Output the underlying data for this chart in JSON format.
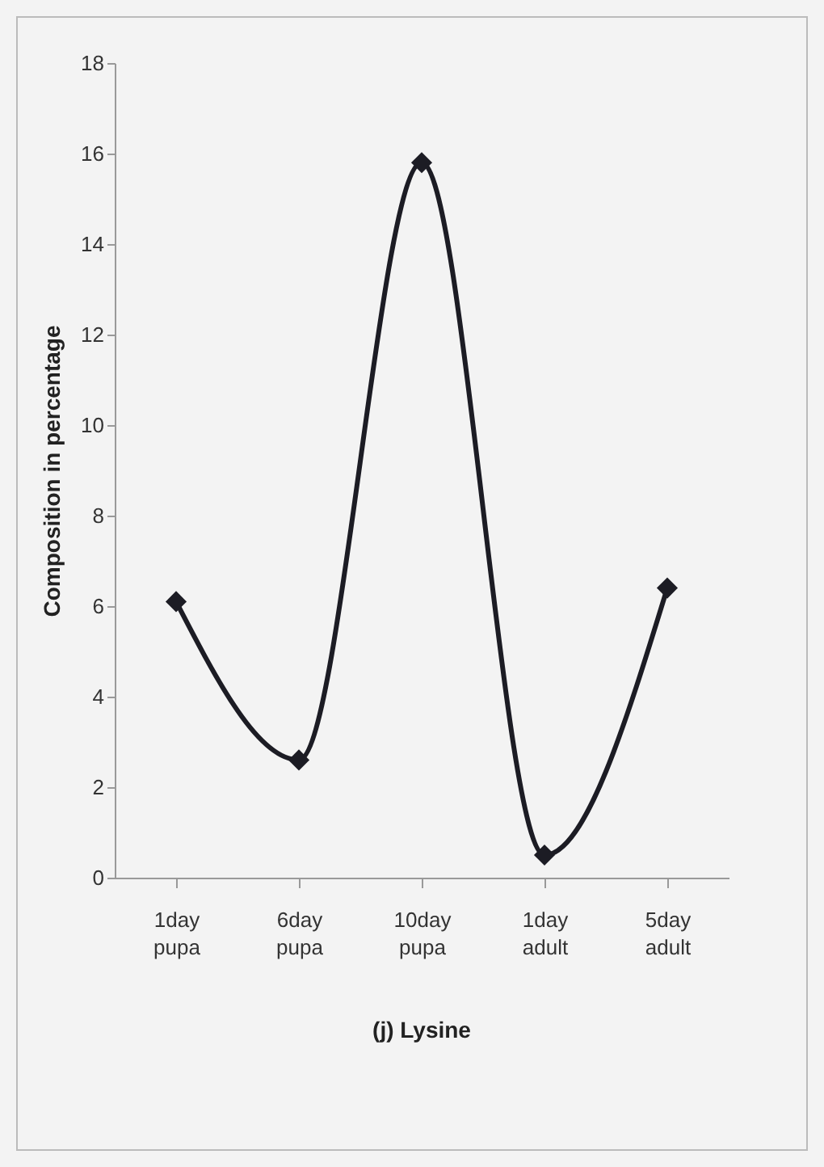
{
  "chart_data": {
    "type": "line",
    "title": "(j) Lysine",
    "ylabel": "Composition in percentage",
    "categories": [
      "1day pupa",
      "6day pupa",
      "10day pupa",
      "1day adult",
      "5day adult"
    ],
    "series": [
      {
        "color": "#1c1c24",
        "values": [
          6.1,
          2.6,
          15.8,
          0.5,
          6.4
        ]
      }
    ],
    "ylim": [
      0,
      18
    ],
    "yticks": [
      0,
      2,
      4,
      6,
      8,
      10,
      12,
      14,
      16,
      18
    ],
    "grid": false,
    "legend": false,
    "marker": "diamond",
    "line_style": "solid"
  }
}
